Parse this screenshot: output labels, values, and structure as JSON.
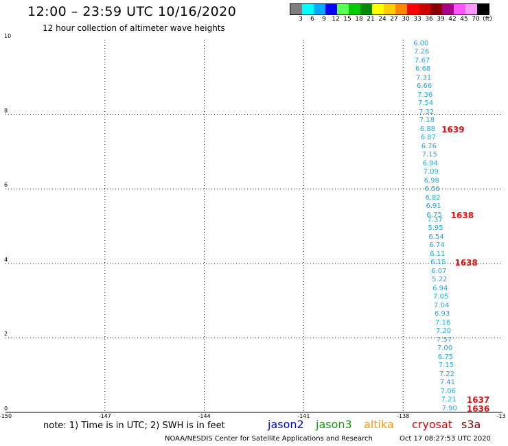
{
  "header": {
    "title": "12:00 – 23:59 UTC 10/16/2020",
    "subtitle": "12 hour collection of altimeter wave heights"
  },
  "colorbar": {
    "colors": [
      "#7f7f7f",
      "#00ffff",
      "#00aaff",
      "#0000ff",
      "#55ff55",
      "#00cc00",
      "#008800",
      "#ffff00",
      "#ffcc00",
      "#ff8800",
      "#ff0000",
      "#cc0000",
      "#880000",
      "#aa0088",
      "#ff55ff",
      "#ff99ff",
      "#000000"
    ],
    "labels": [
      "3",
      "6",
      "9",
      "12",
      "15",
      "18",
      "21",
      "24",
      "27",
      "30",
      "33",
      "36",
      "39",
      "42",
      "45",
      "70",
      "(ft)"
    ]
  },
  "axes": {
    "x_ticks": [
      "-150",
      "-147",
      "-144",
      "-141",
      "-138",
      "-13"
    ],
    "y_ticks": [
      "0",
      "2",
      "4",
      "6",
      "8",
      "10"
    ],
    "x_range": [
      -150,
      -135
    ],
    "y_range": [
      0,
      10
    ]
  },
  "swh_observations": [
    {
      "lon": -137.46,
      "lat": 9.89,
      "value": "6.00"
    },
    {
      "lon": -137.44,
      "lat": 9.66,
      "value": "7.26"
    },
    {
      "lon": -137.42,
      "lat": 9.43,
      "value": "7.67"
    },
    {
      "lon": -137.4,
      "lat": 9.2,
      "value": "6.68"
    },
    {
      "lon": -137.38,
      "lat": 8.97,
      "value": "7.31"
    },
    {
      "lon": -137.36,
      "lat": 8.74,
      "value": "6.66"
    },
    {
      "lon": -137.34,
      "lat": 8.51,
      "value": "7.36"
    },
    {
      "lon": -137.32,
      "lat": 8.28,
      "value": "7.54"
    },
    {
      "lon": -137.3,
      "lat": 8.05,
      "value": "7.32"
    },
    {
      "lon": -137.28,
      "lat": 7.82,
      "value": "7.18"
    },
    {
      "lon": -137.26,
      "lat": 7.59,
      "value": "6.88"
    },
    {
      "lon": -137.24,
      "lat": 7.36,
      "value": "6.87"
    },
    {
      "lon": -137.22,
      "lat": 7.13,
      "value": "6.76"
    },
    {
      "lon": -137.2,
      "lat": 6.9,
      "value": "7.15"
    },
    {
      "lon": -137.18,
      "lat": 6.67,
      "value": "6.94"
    },
    {
      "lon": -137.16,
      "lat": 6.44,
      "value": "7.09"
    },
    {
      "lon": -137.14,
      "lat": 6.21,
      "value": "6.98"
    },
    {
      "lon": -137.12,
      "lat": 5.98,
      "value": "6.56"
    },
    {
      "lon": -137.1,
      "lat": 5.75,
      "value": "6.82"
    },
    {
      "lon": -137.08,
      "lat": 5.52,
      "value": "6.91"
    },
    {
      "lon": -137.06,
      "lat": 5.29,
      "value": "6.75"
    },
    {
      "lon": -137.04,
      "lat": 5.16,
      "value": "7.37"
    },
    {
      "lon": -137.02,
      "lat": 4.93,
      "value": "5.95"
    },
    {
      "lon": -137.0,
      "lat": 4.7,
      "value": "6.54"
    },
    {
      "lon": -136.98,
      "lat": 4.47,
      "value": "6.74"
    },
    {
      "lon": -136.96,
      "lat": 4.24,
      "value": "6.11"
    },
    {
      "lon": -136.94,
      "lat": 4.01,
      "value": "6.15"
    },
    {
      "lon": -136.92,
      "lat": 3.78,
      "value": "6.07"
    },
    {
      "lon": -136.9,
      "lat": 3.55,
      "value": "5.22"
    },
    {
      "lon": -136.88,
      "lat": 3.32,
      "value": "6.94"
    },
    {
      "lon": -136.86,
      "lat": 3.09,
      "value": "7.05"
    },
    {
      "lon": -136.84,
      "lat": 2.86,
      "value": "7.04"
    },
    {
      "lon": -136.82,
      "lat": 2.63,
      "value": "6.93"
    },
    {
      "lon": -136.8,
      "lat": 2.4,
      "value": "7.16"
    },
    {
      "lon": -136.78,
      "lat": 2.17,
      "value": "7.20"
    },
    {
      "lon": -136.76,
      "lat": 1.94,
      "value": "7.57"
    },
    {
      "lon": -136.74,
      "lat": 1.71,
      "value": "7.00"
    },
    {
      "lon": -136.72,
      "lat": 1.48,
      "value": "6.75"
    },
    {
      "lon": -136.7,
      "lat": 1.25,
      "value": "7.15"
    },
    {
      "lon": -136.68,
      "lat": 1.02,
      "value": "7.22"
    },
    {
      "lon": -136.66,
      "lat": 0.79,
      "value": "7.41"
    },
    {
      "lon": -136.64,
      "lat": 0.56,
      "value": "7.06"
    },
    {
      "lon": -136.62,
      "lat": 0.33,
      "value": "7.21"
    },
    {
      "lon": -136.6,
      "lat": 0.1,
      "value": "7.90"
    }
  ],
  "pass_times": [
    {
      "lon": -136.84,
      "lat": 7.59,
      "value": "1639"
    },
    {
      "lon": -136.56,
      "lat": 5.29,
      "value": "1638"
    },
    {
      "lon": -136.44,
      "lat": 4.01,
      "value": "1638"
    },
    {
      "lon": -136.08,
      "lat": 0.33,
      "value": "1637"
    },
    {
      "lon": -136.08,
      "lat": 0.1,
      "value": "1636"
    }
  ],
  "footer": {
    "note": "note: 1) Time is in UTC; 2) SWH is in feet",
    "satellites": [
      {
        "name": "jason2",
        "color": "#0000dd"
      },
      {
        "name": "jason3",
        "color": "#109910"
      },
      {
        "name": "altika",
        "color": "#ff9900"
      },
      {
        "name": "cryosat",
        "color": "#dd0000"
      },
      {
        "name": "s3a",
        "color": "#770000"
      }
    ],
    "credit": "NOAA/NESDIS Center for Satellite Applications and Research",
    "timestamp": "Oct 17 08:27:53 UTC 2020"
  }
}
